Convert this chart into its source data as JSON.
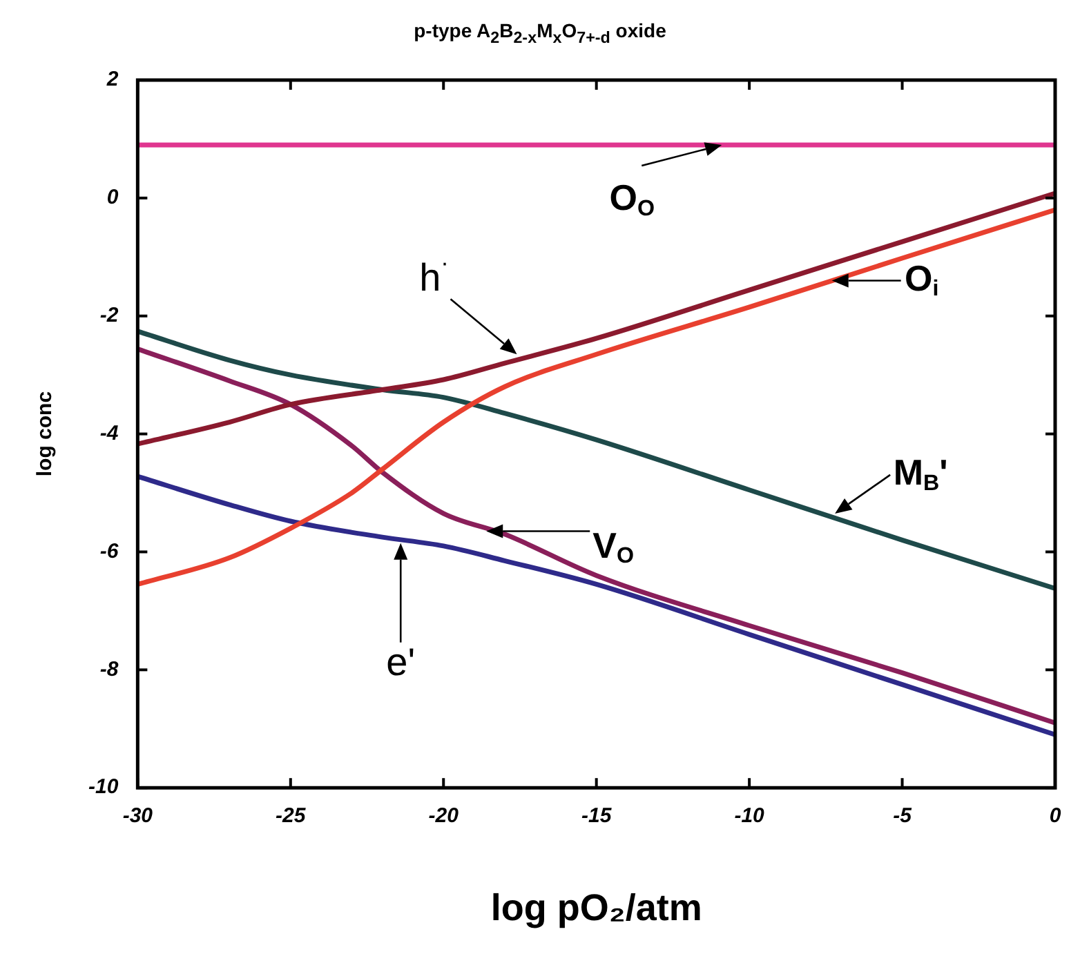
{
  "chart_data": {
    "type": "line",
    "title": "p-type A$_{2}$B$_{2-x}$M$_{x}$O$_{7+-d}$ oxide",
    "xlabel": "log pO₂/atm",
    "ylabel": "log conc",
    "xlim": [
      -30,
      0
    ],
    "xticks": [
      -30,
      -25,
      -20,
      -15,
      -10,
      -5,
      0
    ],
    "ylim": [
      -10,
      2
    ],
    "yticks": [
      -10,
      -8,
      -6,
      -4,
      -2,
      0,
      2
    ],
    "marker": "none",
    "line_style": "solid",
    "series": [
      {
        "color": "#e0358f",
        "x": [
          -30,
          0
        ],
        "values": [
          0.9,
          0.9
        ]
      },
      {
        "color": "#8b1a2e",
        "x": [
          -30,
          -27,
          -25,
          -22,
          -20,
          -18,
          -15,
          -10,
          -5,
          0
        ],
        "values": [
          -4.17,
          -3.8,
          -3.5,
          -3.25,
          -3.08,
          -2.8,
          -2.38,
          -1.56,
          -0.74,
          0.08
        ]
      },
      {
        "color": "#e8402f",
        "x": [
          -30,
          -27,
          -25,
          -23,
          -22,
          -20,
          -18,
          -15,
          -10,
          -5,
          0
        ],
        "values": [
          -6.55,
          -6.1,
          -5.6,
          -5.0,
          -4.6,
          -3.8,
          -3.2,
          -2.65,
          -1.85,
          -1.02,
          -0.2
        ]
      },
      {
        "color": "#1e4a4a",
        "x": [
          -30,
          -27,
          -25,
          -22,
          -20,
          -18,
          -15,
          -10,
          -5,
          0
        ],
        "values": [
          -2.26,
          -2.75,
          -3.0,
          -3.25,
          -3.38,
          -3.65,
          -4.1,
          -4.95,
          -5.8,
          -6.62
        ]
      },
      {
        "color": "#8a1f5a",
        "x": [
          -30,
          -27,
          -25,
          -23,
          -22,
          -20,
          -18,
          -15,
          -10,
          -5,
          0
        ],
        "values": [
          -2.56,
          -3.1,
          -3.5,
          -4.2,
          -4.65,
          -5.35,
          -5.7,
          -6.4,
          -7.25,
          -8.05,
          -8.9
        ]
      },
      {
        "color": "#2e2a8a",
        "x": [
          -30,
          -27,
          -25,
          -22,
          -20,
          -18,
          -15,
          -10,
          -5,
          0
        ],
        "values": [
          -4.72,
          -5.2,
          -5.48,
          -5.75,
          -5.9,
          -6.15,
          -6.55,
          -7.4,
          -8.25,
          -9.1
        ]
      }
    ],
    "annotations": [
      {
        "text": "O$_{O}$",
        "x": -10.9,
        "y": 0.9
      },
      {
        "text": "h$^{·}$",
        "x": -17.6,
        "y": -2.65
      },
      {
        "text": "O$_{i}$",
        "x": -7.3,
        "y": -1.4
      },
      {
        "text": "M$_{B}$'",
        "x": -7.2,
        "y": -5.35
      },
      {
        "text": "V$_{O}$",
        "x": -18.6,
        "y": -5.65
      },
      {
        "text": "e'",
        "x": -21.4,
        "y": -5.85
      }
    ]
  }
}
